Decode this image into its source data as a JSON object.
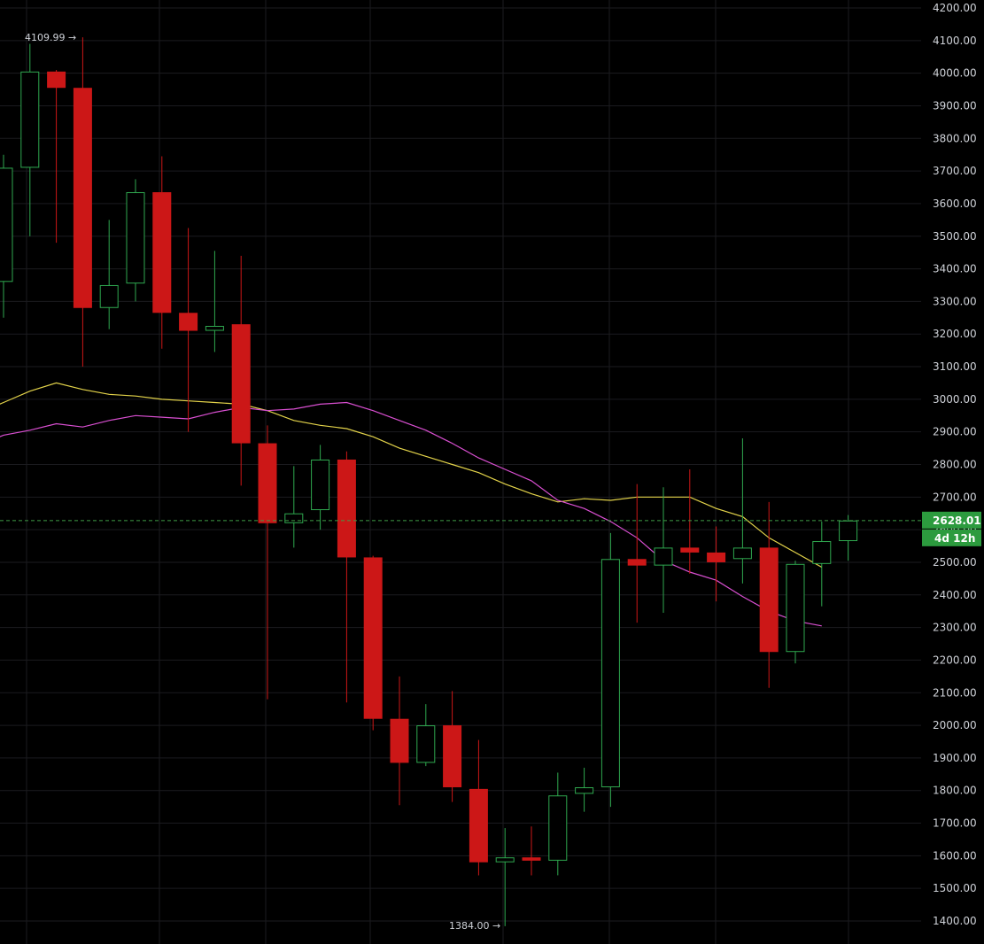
{
  "colors": {
    "background": "#000000",
    "grid": "#1b1b1f",
    "axis_text": "#cfd2d8",
    "up": "#2fa84f",
    "down": "#cc1717",
    "ma_fast": "#e3d34a",
    "ma_slow": "#d94fd1",
    "current_price_line": "#3f9b47",
    "badge": "#2c9b3e"
  },
  "axis": {
    "y_ticks": [
      "1400.00",
      "1500.00",
      "1600.00",
      "1700.00",
      "1800.00",
      "1900.00",
      "2000.00",
      "2100.00",
      "2200.00",
      "2300.00",
      "2400.00",
      "2500.00",
      "2600.00",
      "2700.00",
      "2800.00",
      "2900.00",
      "3000.00",
      "3100.00",
      "3200.00",
      "3300.00",
      "3400.00",
      "3500.00",
      "3600.00",
      "3700.00",
      "3800.00",
      "3900.00",
      "4000.00",
      "4100.00",
      "4200.00"
    ]
  },
  "annotations": {
    "high_label": "4109.99 →",
    "low_label": "1384.00 →"
  },
  "badges": {
    "current_price": "2628.01",
    "countdown": "4d 12h"
  },
  "chart_data": {
    "type": "candlestick",
    "ylim": [
      1365,
      4210
    ],
    "grid": true,
    "candles": [
      {
        "open": 3360,
        "high": 3750,
        "low": 3250,
        "close": 3710
      },
      {
        "open": 3710,
        "high": 4090,
        "low": 3500,
        "close": 4005
      },
      {
        "open": 4005,
        "high": 4010,
        "low": 3480,
        "close": 3955
      },
      {
        "open": 3955,
        "high": 4110,
        "low": 3100,
        "close": 3280
      },
      {
        "open": 3280,
        "high": 3550,
        "low": 3215,
        "close": 3350
      },
      {
        "open": 3355,
        "high": 3675,
        "low": 3300,
        "close": 3635
      },
      {
        "open": 3635,
        "high": 3745,
        "low": 3155,
        "close": 3265
      },
      {
        "open": 3265,
        "high": 3525,
        "low": 2900,
        "close": 3210
      },
      {
        "open": 3210,
        "high": 3455,
        "low": 3145,
        "close": 3225
      },
      {
        "open": 3230,
        "high": 3440,
        "low": 2735,
        "close": 2865
      },
      {
        "open": 2865,
        "high": 2920,
        "low": 2080,
        "close": 2620
      },
      {
        "open": 2620,
        "high": 2795,
        "low": 2545,
        "close": 2650
      },
      {
        "open": 2660,
        "high": 2860,
        "low": 2600,
        "close": 2815
      },
      {
        "open": 2815,
        "high": 2840,
        "low": 2070,
        "close": 2515
      },
      {
        "open": 2515,
        "high": 2520,
        "low": 1985,
        "close": 2020
      },
      {
        "open": 2020,
        "high": 2150,
        "low": 1755,
        "close": 1885
      },
      {
        "open": 1885,
        "high": 2065,
        "low": 1875,
        "close": 2000
      },
      {
        "open": 2000,
        "high": 2105,
        "low": 1765,
        "close": 1810
      },
      {
        "open": 1805,
        "high": 1955,
        "low": 1540,
        "close": 1580
      },
      {
        "open": 1580,
        "high": 1685,
        "low": 1384,
        "close": 1595
      },
      {
        "open": 1595,
        "high": 1690,
        "low": 1540,
        "close": 1585
      },
      {
        "open": 1585,
        "high": 1855,
        "low": 1540,
        "close": 1785
      },
      {
        "open": 1790,
        "high": 1870,
        "low": 1735,
        "close": 1810
      },
      {
        "open": 1810,
        "high": 2590,
        "low": 1750,
        "close": 2510
      },
      {
        "open": 2510,
        "high": 2740,
        "low": 2315,
        "close": 2490
      },
      {
        "open": 2490,
        "high": 2730,
        "low": 2345,
        "close": 2545
      },
      {
        "open": 2545,
        "high": 2785,
        "low": 2465,
        "close": 2530
      },
      {
        "open": 2530,
        "high": 2610,
        "low": 2380,
        "close": 2500
      },
      {
        "open": 2510,
        "high": 2880,
        "low": 2435,
        "close": 2545
      },
      {
        "open": 2545,
        "high": 2685,
        "low": 2115,
        "close": 2225
      },
      {
        "open": 2225,
        "high": 2505,
        "low": 2190,
        "close": 2495
      },
      {
        "open": 2495,
        "high": 2625,
        "low": 2365,
        "close": 2565
      },
      {
        "open": 2565,
        "high": 2645,
        "low": 2505,
        "close": 2628
      }
    ],
    "ma_fast": [
      2990,
      3025,
      3050,
      3030,
      3015,
      3010,
      3000,
      2995,
      2990,
      2985,
      2965,
      2935,
      2920,
      2910,
      2885,
      2850,
      2825,
      2800,
      2775,
      2740,
      2710,
      2685,
      2695,
      2690,
      2700,
      2700,
      2700,
      2665,
      2640,
      2575,
      2530,
      2485
    ],
    "ma_slow": [
      2890,
      2905,
      2925,
      2915,
      2935,
      2950,
      2945,
      2940,
      2960,
      2975,
      2965,
      2970,
      2985,
      2990,
      2965,
      2935,
      2905,
      2865,
      2820,
      2785,
      2750,
      2690,
      2665,
      2625,
      2575,
      2505,
      2470,
      2445,
      2395,
      2350,
      2320,
      2305
    ],
    "current_price": 2628.01
  }
}
